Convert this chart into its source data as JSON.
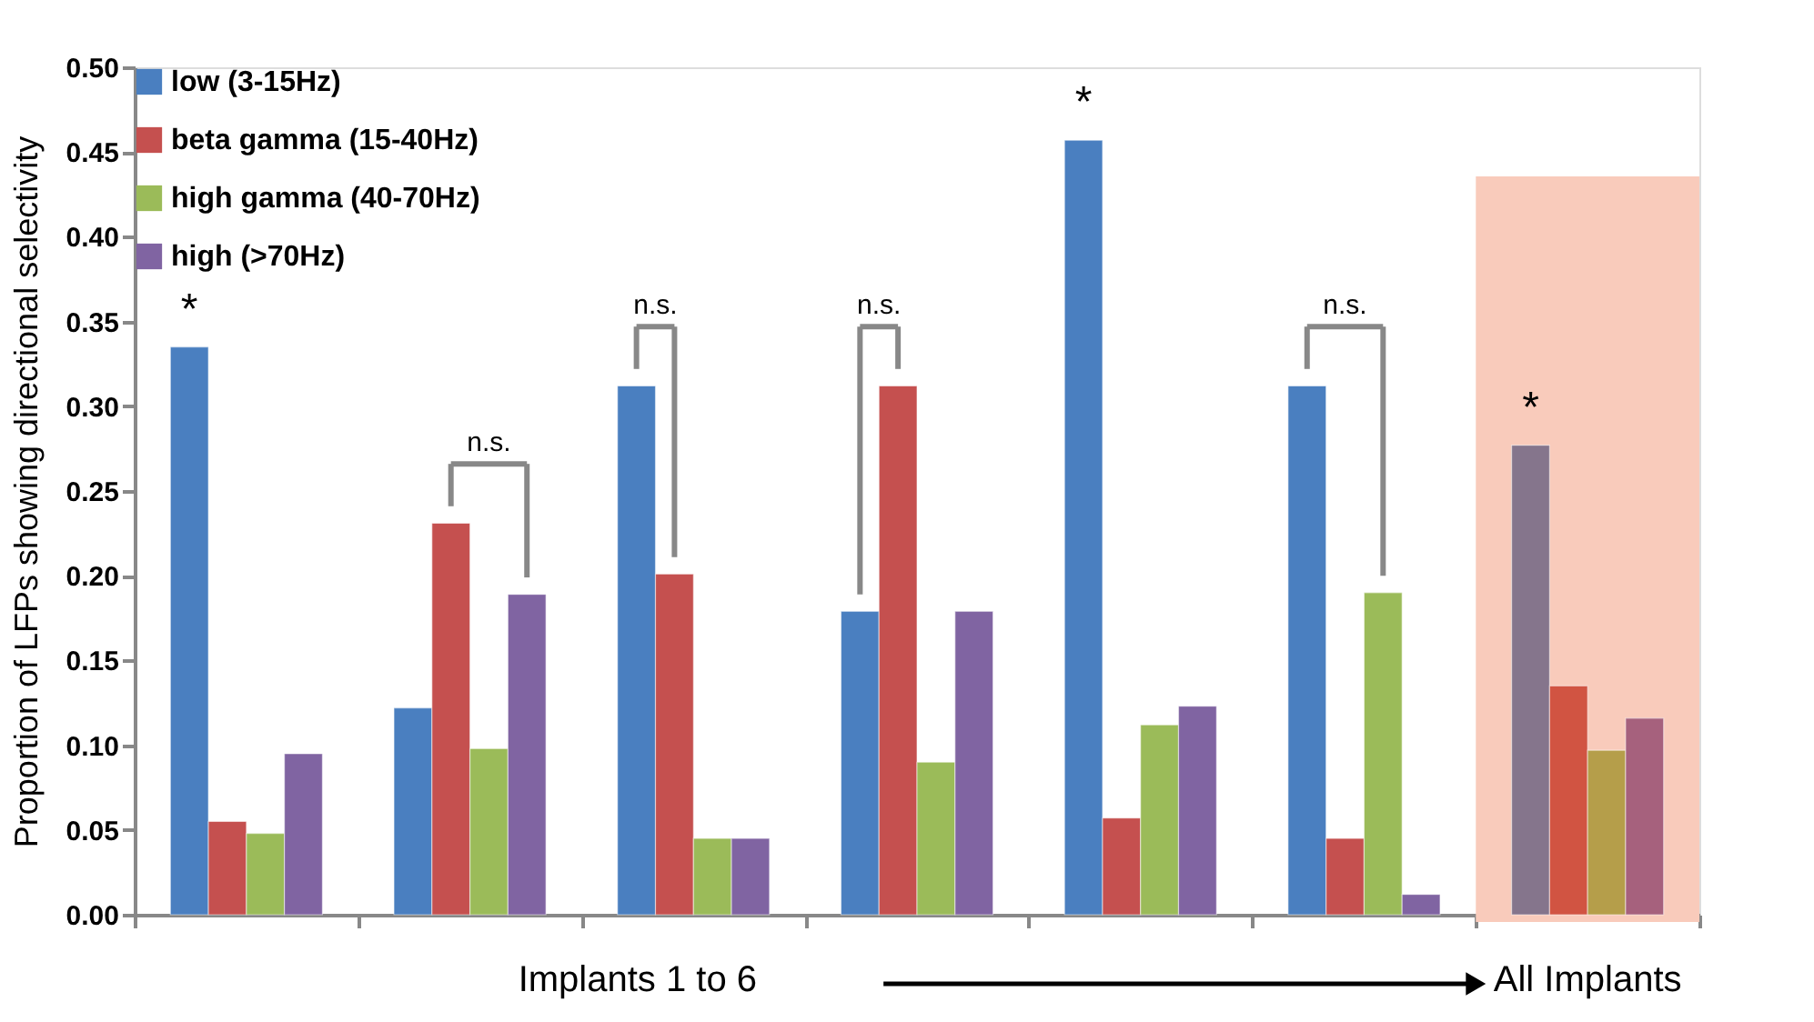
{
  "chart_data": {
    "type": "bar",
    "ylabel": "Proportion of LFPs showing directional selectivity",
    "categories": [
      null,
      null,
      null,
      null,
      null,
      null,
      "All Implants"
    ],
    "bands": [
      {
        "axis": "x",
        "from": "All Implants",
        "to": "All Implants",
        "color": "#f9cbbb"
      }
    ],
    "series": [
      {
        "name": "low (3-15Hz)",
        "color": "#4a7fc0",
        "colors": [
          "#4a7fc0",
          "#4a7fc0",
          "#4a7fc0",
          "#4a7fc0",
          "#4a7fc0",
          "#4a7fc0",
          "#85758c"
        ],
        "values": [
          0.335,
          0.122,
          0.312,
          0.179,
          0.457,
          0.312,
          0.277
        ]
      },
      {
        "name": "beta gamma (15-40Hz)",
        "color": "#c5504f",
        "colors": [
          "#c5504f",
          "#c5504f",
          "#c5504f",
          "#c5504f",
          "#c5504f",
          "#c5504f",
          "#d15442"
        ],
        "values": [
          0.055,
          0.231,
          0.201,
          0.312,
          0.057,
          0.045,
          0.135
        ]
      },
      {
        "name": "high gamma (40-70Hz)",
        "color": "#9bbb59",
        "colors": [
          "#9bbb59",
          "#9bbb59",
          "#9bbb59",
          "#9bbb59",
          "#9bbb59",
          "#9bbb59",
          "#b59e4a"
        ],
        "values": [
          0.048,
          0.098,
          0.045,
          0.09,
          0.112,
          0.19,
          0.097
        ]
      },
      {
        "name": "high (>70Hz)",
        "color": "#8064a2",
        "colors": [
          "#8064a2",
          "#8064a2",
          "#8064a2",
          "#8064a2",
          "#8064a2",
          "#8064a2",
          "#a6617d"
        ],
        "values": [
          0.095,
          0.189,
          0.045,
          0.179,
          0.123,
          0.012,
          0.116
        ]
      }
    ],
    "ylim": [
      0,
      0.5
    ],
    "yticks": [
      {
        "value": 0,
        "label": "0.00"
      },
      {
        "value": 0.05,
        "label": "0.05"
      },
      {
        "value": 0.1,
        "label": "0.10"
      },
      {
        "value": 0.15,
        "label": "0.15"
      },
      {
        "value": 0.2,
        "label": "0.20"
      },
      {
        "value": 0.25,
        "label": "0.25"
      },
      {
        "value": 0.3,
        "label": "0.30"
      },
      {
        "value": 0.35,
        "label": "0.35"
      },
      {
        "value": 0.4,
        "label": "0.40"
      },
      {
        "value": 0.45,
        "label": "0.45"
      },
      {
        "value": 0.5,
        "label": "0.50"
      }
    ],
    "annotations": [
      "*",
      "n.s.",
      "n.s.",
      "n.s.",
      "*",
      "n.s.",
      "*",
      "Implants 1 to 6"
    ],
    "legend": "top left",
    "grid": false
  }
}
